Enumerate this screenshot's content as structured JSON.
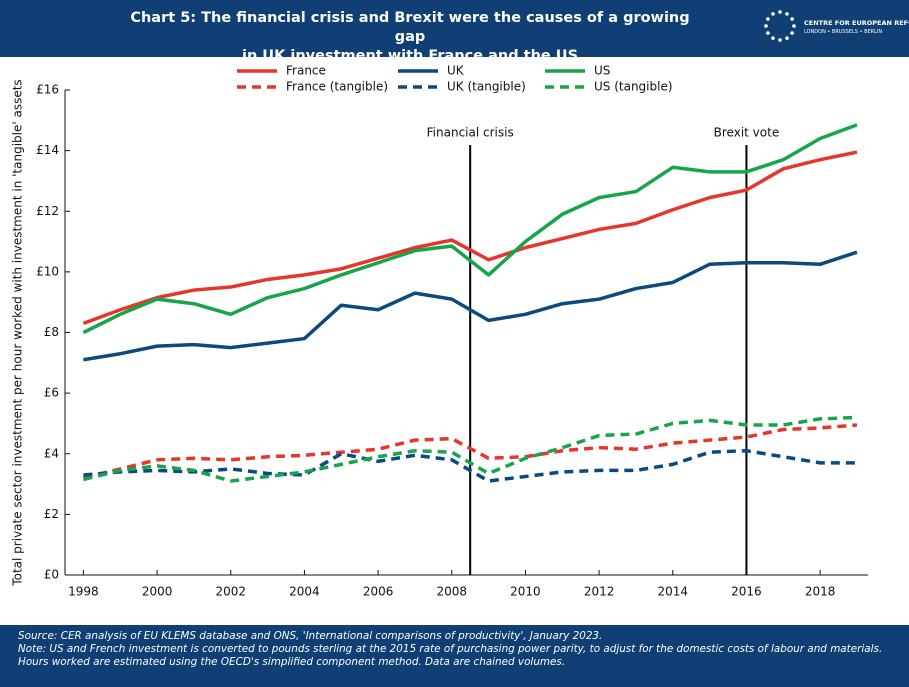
{
  "header": {
    "logo_name": "CENTRE FOR EUROPEAN REFORM",
    "logo_cities": "LONDON • BRUSSELS • BERLIN"
  },
  "chart_data": {
    "type": "line",
    "title": [
      "Chart 5: The financial crisis and Brexit were the causes of a growing gap",
      "in UK investment with France and the US"
    ],
    "ylabel": "Total private sector investment per hour worked with investment in 'tangible' assets",
    "x": [
      1998,
      1999,
      2000,
      2001,
      2002,
      2003,
      2004,
      2005,
      2006,
      2007,
      2008,
      2009,
      2010,
      2011,
      2012,
      2013,
      2014,
      2015,
      2016,
      2017,
      2018,
      2019
    ],
    "xlim": [
      1997.5,
      2019.3
    ],
    "xticks": [
      1998,
      2000,
      2002,
      2004,
      2006,
      2008,
      2010,
      2012,
      2014,
      2016,
      2018
    ],
    "ylim": [
      0,
      16
    ],
    "yticks": [
      {
        "value": 0,
        "label": "£0"
      },
      {
        "value": 2,
        "label": "£2"
      },
      {
        "value": 4,
        "label": "£4"
      },
      {
        "value": 6,
        "label": "£6"
      },
      {
        "value": 8,
        "label": "£8"
      },
      {
        "value": 10,
        "label": "£10"
      },
      {
        "value": 12,
        "label": "£12"
      },
      {
        "value": 14,
        "label": "£14"
      },
      {
        "value": 16,
        "label": "£16"
      }
    ],
    "grid": false,
    "series": [
      {
        "name": "France",
        "color": "#e8352b",
        "dash": false,
        "values": [
          8.3,
          8.75,
          9.15,
          9.4,
          9.5,
          9.75,
          9.9,
          10.1,
          10.45,
          10.8,
          11.05,
          10.4,
          10.8,
          11.1,
          11.4,
          11.6,
          12.05,
          12.45,
          12.7,
          13.4,
          13.7,
          13.95
        ]
      },
      {
        "name": "UK",
        "color": "#0b4a7e",
        "dash": false,
        "values": [
          7.1,
          7.3,
          7.55,
          7.6,
          7.5,
          7.65,
          7.8,
          8.9,
          8.75,
          9.3,
          9.1,
          8.4,
          8.6,
          8.95,
          9.1,
          9.45,
          9.65,
          10.25,
          10.3,
          10.3,
          10.25,
          10.65
        ]
      },
      {
        "name": "US",
        "color": "#17a44a",
        "dash": false,
        "values": [
          8.0,
          8.6,
          9.1,
          8.95,
          8.6,
          9.15,
          9.45,
          9.9,
          10.3,
          10.7,
          10.85,
          9.9,
          11.0,
          11.9,
          12.45,
          12.65,
          13.45,
          13.3,
          13.3,
          13.7,
          14.4,
          14.85
        ]
      },
      {
        "name": "France (tangible)",
        "color": "#e8352b",
        "dash": true,
        "values": [
          3.2,
          3.5,
          3.8,
          3.85,
          3.8,
          3.9,
          3.95,
          4.05,
          4.15,
          4.45,
          4.5,
          3.85,
          3.9,
          4.1,
          4.2,
          4.15,
          4.35,
          4.45,
          4.55,
          4.8,
          4.85,
          4.95
        ]
      },
      {
        "name": "UK (tangible)",
        "color": "#0b4a7e",
        "dash": true,
        "values": [
          3.3,
          3.4,
          3.45,
          3.4,
          3.5,
          3.35,
          3.3,
          4.0,
          3.75,
          3.95,
          3.8,
          3.1,
          3.25,
          3.4,
          3.45,
          3.45,
          3.65,
          4.05,
          4.1,
          3.9,
          3.7,
          3.7
        ]
      },
      {
        "name": "US (tangible)",
        "color": "#17a44a",
        "dash": true,
        "values": [
          3.15,
          3.45,
          3.6,
          3.45,
          3.1,
          3.25,
          3.4,
          3.65,
          3.9,
          4.1,
          4.05,
          3.35,
          3.85,
          4.2,
          4.6,
          4.65,
          5.0,
          5.1,
          4.95,
          4.95,
          5.15,
          5.2
        ]
      }
    ],
    "annotations": [
      {
        "text": "Financial crisis",
        "x": 2008.5
      },
      {
        "text": "Brexit vote",
        "x": 2016
      }
    ]
  },
  "footer": {
    "source": "Source: CER analysis of EU KLEMS database and ONS, 'International comparisons of productivity', January 2023.",
    "note": "Note: US and French investment is converted to pounds sterling at the 2015 rate of purchasing power parity, to adjust for the domestic costs of labour and materials. Hours worked are estimated using the OECD's simplified component method. Data are chained volumes."
  }
}
